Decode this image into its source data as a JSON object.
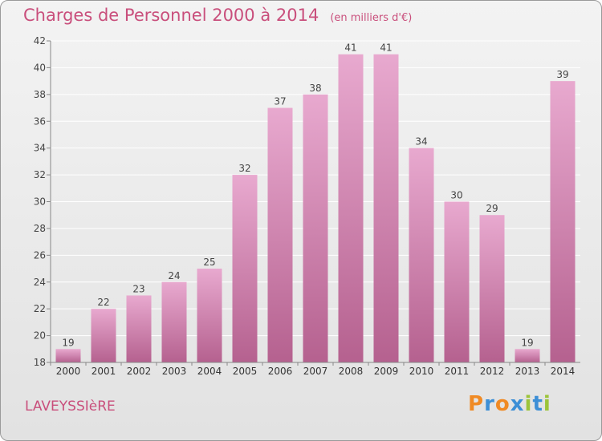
{
  "title": "Charges de Personnel 2000 à 2014",
  "subtitle": "(en milliers d'€)",
  "location": "LAVEYSSIèRE",
  "brand": {
    "letters": [
      "P",
      "r",
      "o",
      "x",
      "i",
      "t",
      "i"
    ],
    "colors": [
      "#f08a24",
      "#3d8fd6",
      "#f08a24",
      "#3d8fd6",
      "#9cc43a",
      "#3d8fd6",
      "#9cc43a"
    ]
  },
  "colors": {
    "bar_top": "#e8a9cf",
    "bar_bottom": "#b5618f",
    "title": "#c94f7c"
  },
  "chart_data": {
    "type": "bar",
    "categories": [
      "2000",
      "2001",
      "2002",
      "2003",
      "2004",
      "2005",
      "2006",
      "2007",
      "2008",
      "2009",
      "2010",
      "2011",
      "2012",
      "2013",
      "2014"
    ],
    "values": [
      19,
      22,
      23,
      24,
      25,
      32,
      37,
      38,
      41,
      41,
      34,
      30,
      29,
      19,
      39
    ],
    "ylim": [
      18,
      42
    ],
    "yticks": [
      18,
      20,
      22,
      24,
      26,
      28,
      30,
      32,
      34,
      36,
      38,
      40,
      42
    ],
    "grid": true
  }
}
